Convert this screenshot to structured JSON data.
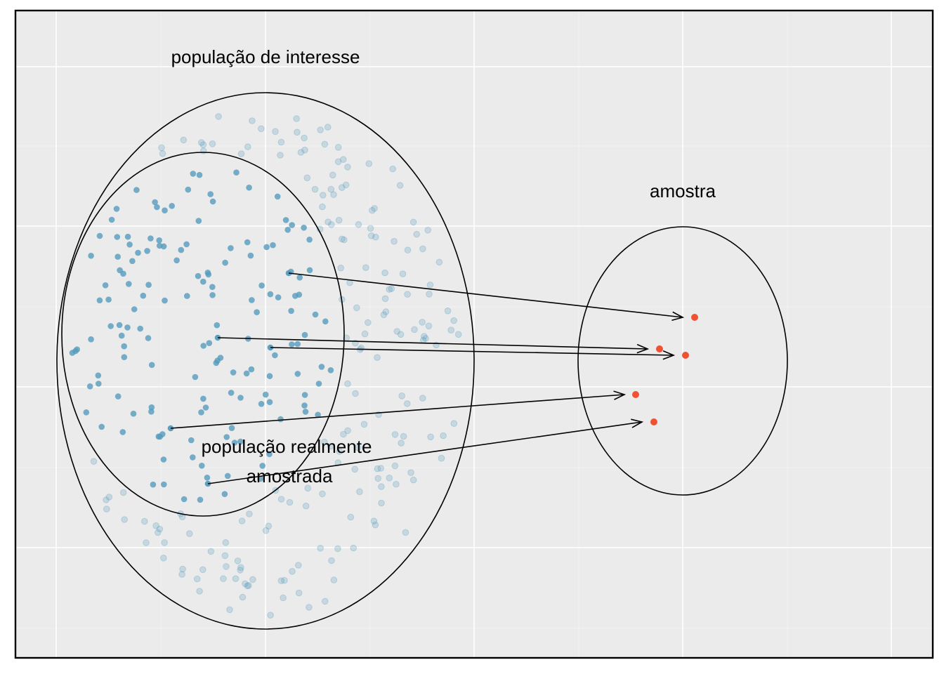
{
  "labels": {
    "population_of_interest": "população de interesse",
    "sampled_population_line1": "população realmente",
    "sampled_population_line2": "amostrada",
    "sample": "amostra"
  },
  "colors": {
    "panel_background": "#ebebeb",
    "grid": "#ffffff",
    "frame": "#000000",
    "population_point": "#569bbd",
    "sampled_population_point": "#569bbd",
    "sample_point": "#f05133",
    "arrow": "#000000"
  },
  "point_opacity": {
    "population_of_interest_only": 0.25,
    "sampled_population": 0.8,
    "sample": 1.0
  }
}
